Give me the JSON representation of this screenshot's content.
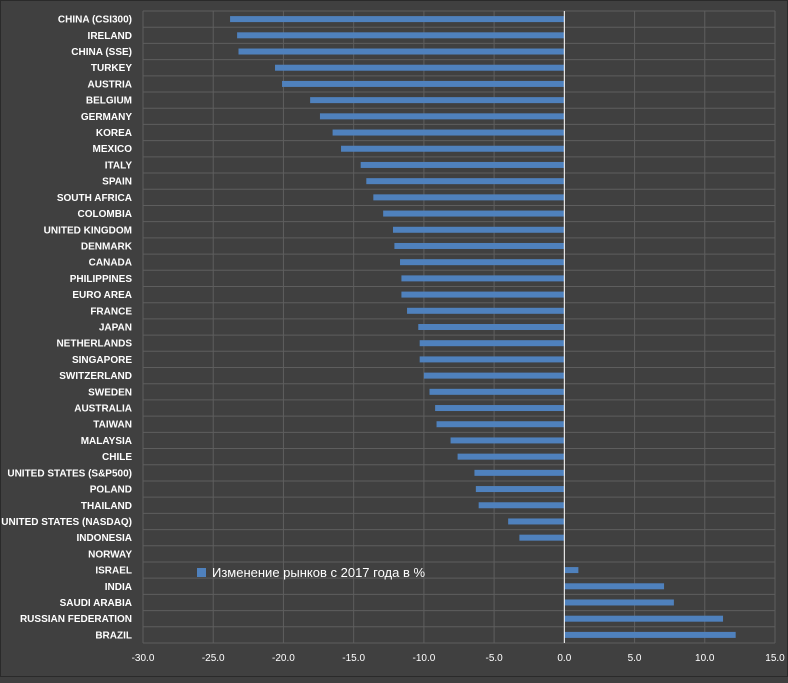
{
  "chart_data": {
    "type": "bar",
    "orientation": "horizontal",
    "categories": [
      "CHINA (CSI300)",
      "IRELAND",
      "CHINA (SSE)",
      "TURKEY",
      "AUSTRIA",
      "BELGIUM",
      "GERMANY",
      "KOREA",
      "MEXICO",
      "ITALY",
      "SPAIN",
      "SOUTH AFRICA",
      "COLOMBIA",
      "UNITED KINGDOM",
      "DENMARK",
      "CANADA",
      "PHILIPPINES",
      "EURO AREA",
      "FRANCE",
      "JAPAN",
      "NETHERLANDS",
      "SINGAPORE",
      "SWITZERLAND",
      "SWEDEN",
      "AUSTRALIA",
      "TAIWAN",
      "MALAYSIA",
      "CHILE",
      "UNITED STATES (S&P500)",
      "POLAND",
      "THAILAND",
      "UNITED STATES (NASDAQ)",
      "INDONESIA",
      "NORWAY",
      "ISRAEL",
      "INDIA",
      "SAUDI ARABIA",
      "RUSSIAN FEDERATION",
      "BRAZIL"
    ],
    "series": [
      {
        "name": "Изменение рынков с 2017 года в %",
        "color": "#4f81bd",
        "values": [
          -23.8,
          -23.3,
          -23.2,
          -20.6,
          -20.1,
          -18.1,
          -17.4,
          -16.5,
          -15.9,
          -14.5,
          -14.1,
          -13.6,
          -12.9,
          -12.2,
          -12.1,
          -11.7,
          -11.6,
          -11.6,
          -11.2,
          -10.4,
          -10.3,
          -10.3,
          -10.0,
          -9.6,
          -9.2,
          -9.1,
          -8.1,
          -7.6,
          -6.4,
          -6.3,
          -6.1,
          -4.0,
          -3.2,
          0.0,
          1.0,
          7.1,
          7.8,
          11.3,
          12.2
        ]
      }
    ],
    "xlim": [
      -30,
      15
    ],
    "xticks": [
      "-30.0",
      "-25.0",
      "-20.0",
      "-15.0",
      "-10.0",
      "-5.0",
      "0.0",
      "5.0",
      "10.0",
      "15.0"
    ],
    "xtick_values": [
      -30,
      -25,
      -20,
      -15,
      -10,
      -5,
      0,
      5,
      10,
      15
    ],
    "grid": true,
    "legend_position": "inside-bottom-left",
    "title": "",
    "xlabel": "",
    "ylabel": ""
  }
}
